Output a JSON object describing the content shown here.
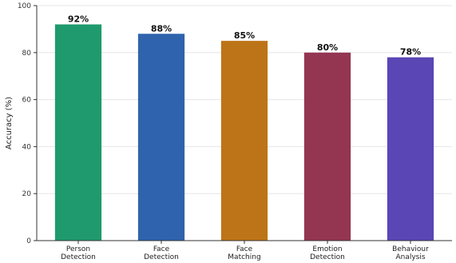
{
  "chart_data": {
    "type": "bar",
    "categories": [
      [
        "Person",
        "Detection"
      ],
      [
        "Face",
        "Detection"
      ],
      [
        "Face",
        "Matching"
      ],
      [
        "Emotion",
        "Detection"
      ],
      [
        "Behaviour",
        "Analysis"
      ]
    ],
    "values": [
      92,
      88,
      85,
      80,
      78
    ],
    "value_labels": [
      "92%",
      "88%",
      "85%",
      "80%",
      "78%"
    ],
    "colors": [
      "#1f9a6e",
      "#2f63ad",
      "#bd7418",
      "#943552",
      "#5a46b5"
    ],
    "title": "",
    "xlabel": "",
    "ylabel": "Accuracy (%)",
    "ylim": [
      0,
      100
    ],
    "yticks": [
      0,
      20,
      40,
      60,
      80,
      100
    ],
    "grid": "horizontal",
    "legend": "none"
  }
}
